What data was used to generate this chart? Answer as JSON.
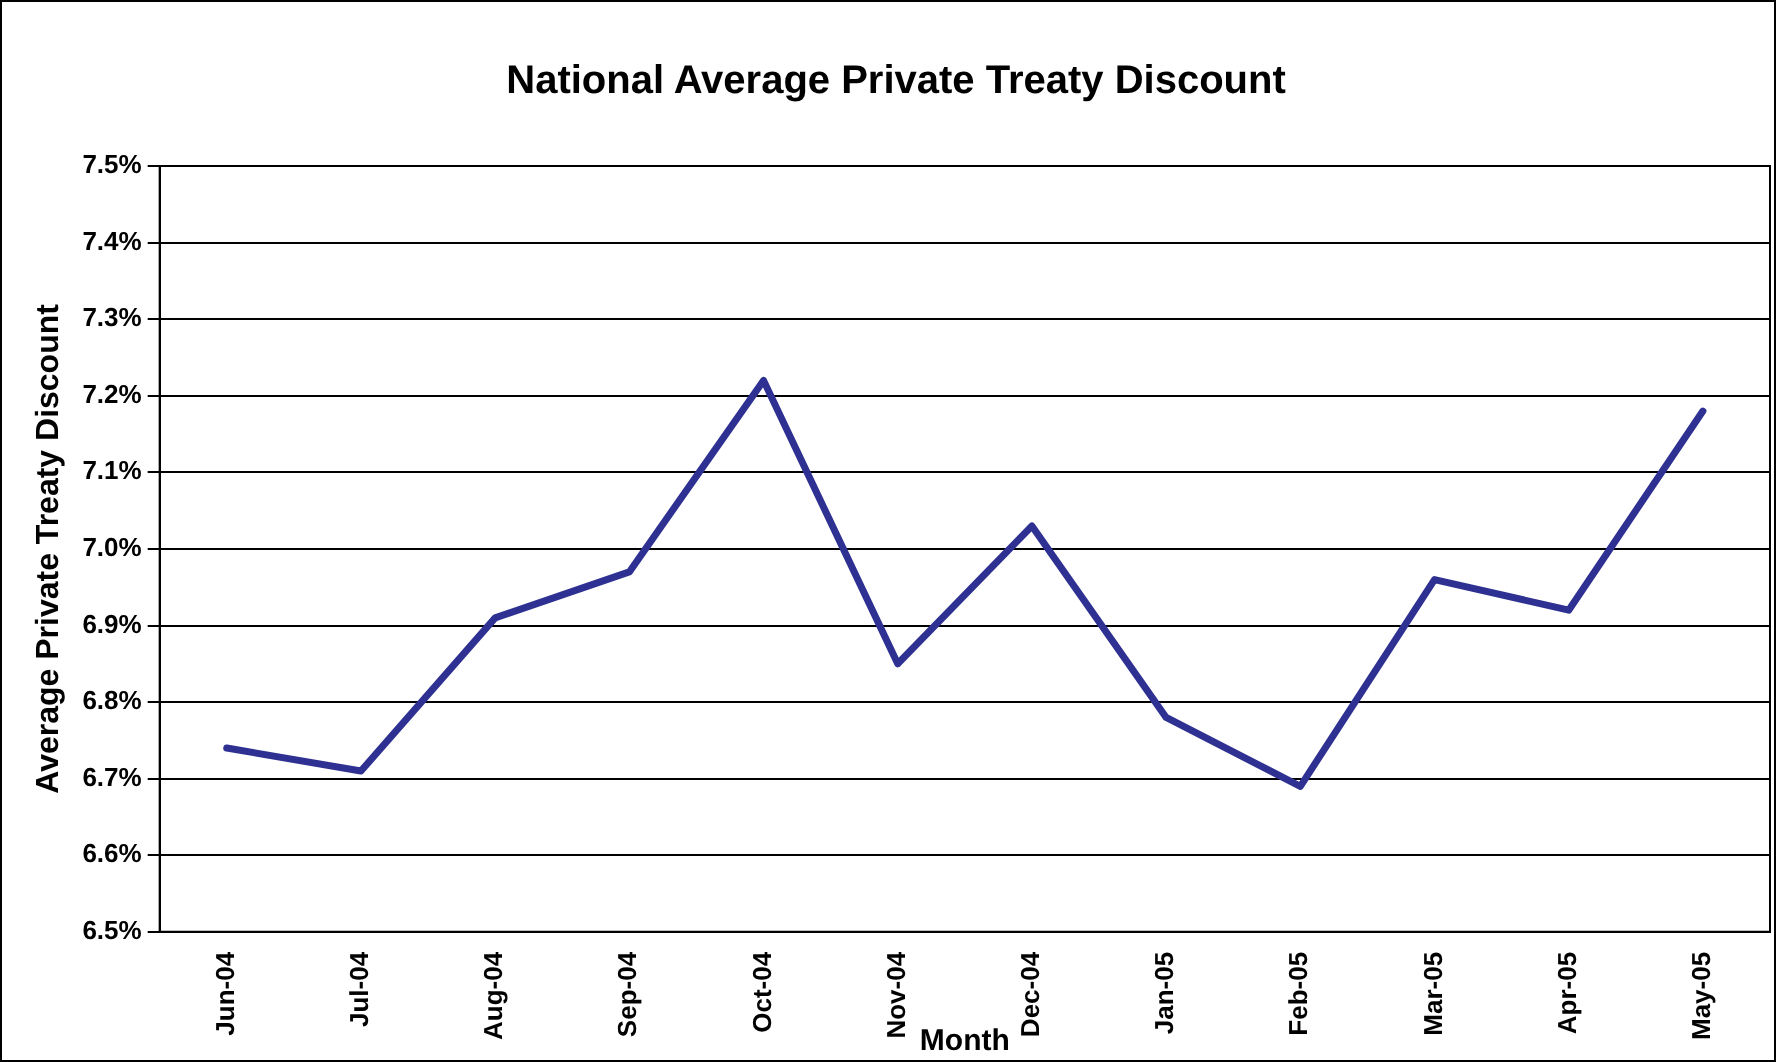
{
  "chart_data": {
    "type": "line",
    "title": "National Average Private Treaty Discount",
    "xlabel": "Month",
    "ylabel": "Average Private Treaty Discount",
    "categories": [
      "Jun-04",
      "Jul-04",
      "Aug-04",
      "Sep-04",
      "Oct-04",
      "Nov-04",
      "Dec-04",
      "Jan-05",
      "Feb-05",
      "Mar-05",
      "Apr-05",
      "May-05"
    ],
    "series": [
      {
        "color": "#2e3192",
        "values": [
          6.74,
          6.71,
          6.91,
          6.97,
          7.22,
          6.85,
          7.03,
          6.78,
          6.69,
          6.96,
          6.92,
          7.18
        ]
      }
    ],
    "ylim": [
      6.5,
      7.5
    ],
    "yticks": [
      {
        "value": 6.5,
        "label": "6.5%"
      },
      {
        "value": 6.6,
        "label": "6.6%"
      },
      {
        "value": 6.7,
        "label": "6.7%"
      },
      {
        "value": 6.8,
        "label": "6.8%"
      },
      {
        "value": 6.9,
        "label": "6.9%"
      },
      {
        "value": 7.0,
        "label": "7.0%"
      },
      {
        "value": 7.1,
        "label": "7.1%"
      },
      {
        "value": 7.2,
        "label": "7.2%"
      },
      {
        "value": 7.3,
        "label": "7.3%"
      },
      {
        "value": 7.4,
        "label": "7.4%"
      },
      {
        "value": 7.5,
        "label": "7.5%"
      }
    ],
    "grid": "y",
    "legend": false,
    "marker": "none",
    "line_style": "solid"
  }
}
